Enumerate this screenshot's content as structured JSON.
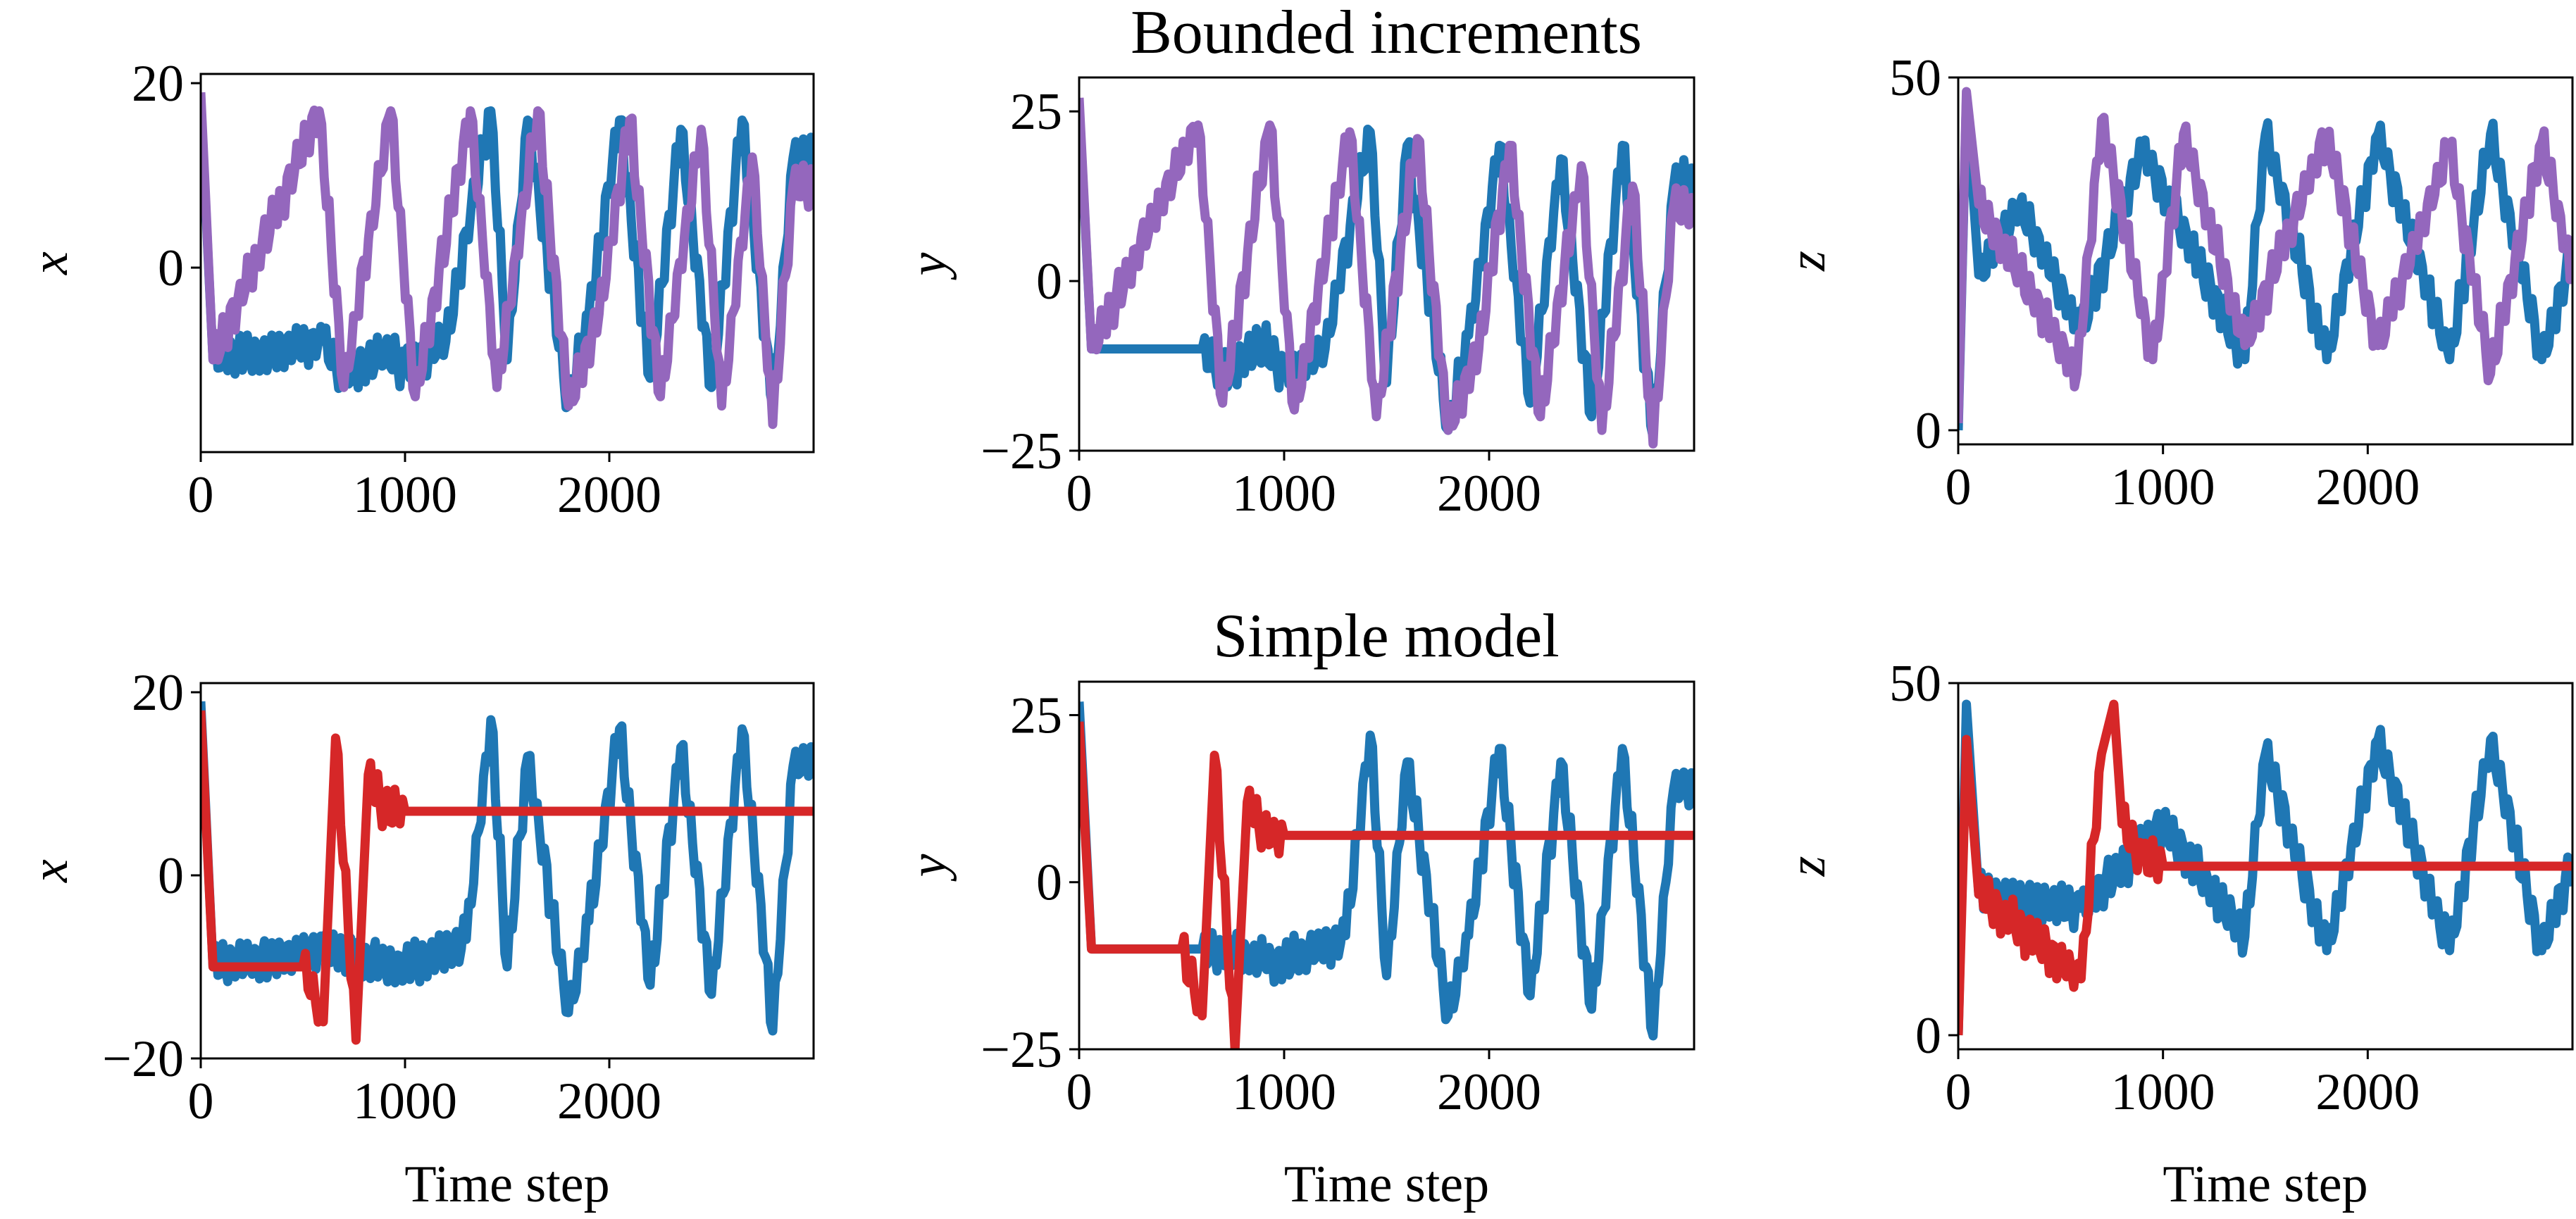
{
  "chart_data": [
    {
      "type": "line",
      "row_title": "Bounded increments",
      "xlabel": "",
      "ylabel": "x",
      "xlim": [
        0,
        3000
      ],
      "ylim": [
        -20,
        21
      ],
      "xticks": [
        0,
        1000,
        2000
      ],
      "yticks": [
        0,
        20
      ],
      "series": [
        {
          "color": "#1f77b4",
          "points": [
            [
              0,
              18
            ],
            [
              60,
              -10
            ],
            [
              600,
              -8
            ],
            [
              700,
              -12
            ],
            [
              900,
              -9
            ],
            [
              1000,
              -11
            ],
            [
              1200,
              -8
            ],
            [
              1420,
              17
            ],
            [
              1500,
              -10
            ],
            [
              1600,
              16
            ],
            [
              1800,
              -15
            ],
            [
              1900,
              -5
            ],
            [
              2050,
              16
            ],
            [
              2200,
              -12
            ],
            [
              2350,
              15
            ],
            [
              2500,
              -13
            ],
            [
              2650,
              16
            ],
            [
              2800,
              -15
            ],
            [
              2900,
              12
            ],
            [
              3000,
              13
            ]
          ]
        },
        {
          "color": "#9467bd",
          "points": [
            [
              0,
              19
            ],
            [
              60,
              -10
            ],
            [
              580,
              17
            ],
            [
              700,
              -13
            ],
            [
              930,
              17
            ],
            [
              1050,
              -14
            ],
            [
              1320,
              17
            ],
            [
              1450,
              -13
            ],
            [
              1650,
              17
            ],
            [
              1800,
              -15
            ],
            [
              1950,
              -5
            ],
            [
              2100,
              16
            ],
            [
              2250,
              -14
            ],
            [
              2450,
              15
            ],
            [
              2550,
              -15
            ],
            [
              2700,
              12
            ],
            [
              2800,
              -17
            ],
            [
              2900,
              9
            ],
            [
              3000,
              9
            ]
          ]
        }
      ]
    },
    {
      "type": "line",
      "row_title": "",
      "xlabel": "",
      "ylabel": "y",
      "xlim": [
        0,
        3000
      ],
      "ylim": [
        -25,
        30
      ],
      "xticks": [
        0,
        1000,
        2000
      ],
      "yticks": [
        -25,
        0,
        25
      ],
      "series": [
        {
          "color": "#1f77b4",
          "points": [
            [
              0,
              26
            ],
            [
              60,
              -10
            ],
            [
              600,
              -10
            ],
            [
              700,
              -14
            ],
            [
              900,
              -9
            ],
            [
              1000,
              -14
            ],
            [
              1200,
              -10
            ],
            [
              1420,
              22
            ],
            [
              1500,
              -15
            ],
            [
              1600,
              20
            ],
            [
              1800,
              -22
            ],
            [
              1900,
              -8
            ],
            [
              2050,
              20
            ],
            [
              2200,
              -18
            ],
            [
              2350,
              18
            ],
            [
              2500,
              -20
            ],
            [
              2650,
              20
            ],
            [
              2800,
              -23
            ],
            [
              2900,
              14
            ],
            [
              3000,
              15
            ]
          ]
        },
        {
          "color": "#9467bd",
          "points": [
            [
              0,
              27
            ],
            [
              60,
              -10
            ],
            [
              580,
              23
            ],
            [
              700,
              -18
            ],
            [
              930,
              23
            ],
            [
              1050,
              -19
            ],
            [
              1320,
              22
            ],
            [
              1450,
              -20
            ],
            [
              1650,
              21
            ],
            [
              1800,
              -22
            ],
            [
              1950,
              -10
            ],
            [
              2100,
              20
            ],
            [
              2250,
              -20
            ],
            [
              2450,
              17
            ],
            [
              2550,
              -22
            ],
            [
              2700,
              14
            ],
            [
              2800,
              -24
            ],
            [
              2900,
              11
            ],
            [
              3000,
              10
            ]
          ]
        }
      ]
    },
    {
      "type": "line",
      "row_title": "",
      "xlabel": "",
      "ylabel": "z",
      "xlim": [
        0,
        3000
      ],
      "ylim": [
        -2,
        50
      ],
      "xticks": [
        0,
        1000,
        2000
      ],
      "yticks": [
        0,
        50
      ],
      "series": [
        {
          "color": "#1f77b4",
          "points": [
            [
              0,
              0
            ],
            [
              40,
              47
            ],
            [
              100,
              22
            ],
            [
              300,
              32
            ],
            [
              600,
              14
            ],
            [
              900,
              40
            ],
            [
              1400,
              10
            ],
            [
              1500,
              42
            ],
            [
              1800,
              10
            ],
            [
              2050,
              42
            ],
            [
              2400,
              10
            ],
            [
              2600,
              42
            ],
            [
              2850,
              10
            ],
            [
              3000,
              25
            ]
          ]
        },
        {
          "color": "#9467bd",
          "points": [
            [
              0,
              1
            ],
            [
              40,
              48
            ],
            [
              100,
              32
            ],
            [
              300,
              22
            ],
            [
              580,
              8
            ],
            [
              700,
              44
            ],
            [
              950,
              10
            ],
            [
              1100,
              42
            ],
            [
              1400,
              12
            ],
            [
              1800,
              42
            ],
            [
              2050,
              12
            ],
            [
              2400,
              40
            ],
            [
              2600,
              8
            ],
            [
              2850,
              41
            ],
            [
              3000,
              22
            ]
          ]
        }
      ]
    },
    {
      "type": "line",
      "row_title": "Simple model",
      "xlabel": "Time step",
      "ylabel": "x",
      "xlim": [
        0,
        3000
      ],
      "ylim": [
        -20,
        21
      ],
      "xticks": [
        0,
        1000,
        2000
      ],
      "yticks": [
        -20,
        0,
        20
      ],
      "series": [
        {
          "color": "#1f77b4",
          "points": [
            [
              0,
              19
            ],
            [
              60,
              -10
            ],
            [
              600,
              -8
            ],
            [
              1000,
              -10
            ],
            [
              1300,
              -7
            ],
            [
              1420,
              17
            ],
            [
              1500,
              -10
            ],
            [
              1600,
              13
            ],
            [
              1800,
              -15
            ],
            [
              1900,
              -5
            ],
            [
              2050,
              16
            ],
            [
              2200,
              -12
            ],
            [
              2350,
              14
            ],
            [
              2500,
              -13
            ],
            [
              2650,
              16
            ],
            [
              2800,
              -17
            ],
            [
              2900,
              12
            ],
            [
              3000,
              13
            ]
          ]
        },
        {
          "color": "#d62728",
          "points": [
            [
              0,
              18
            ],
            [
              60,
              -10
            ],
            [
              500,
              -10
            ],
            [
              600,
              -16
            ],
            [
              660,
              15
            ],
            [
              760,
              -18
            ],
            [
              820,
              11
            ],
            [
              900,
              7
            ],
            [
              1000,
              7
            ],
            [
              3000,
              7
            ]
          ]
        }
      ]
    },
    {
      "type": "line",
      "row_title": "",
      "xlabel": "Time step",
      "ylabel": "y",
      "xlim": [
        0,
        3000
      ],
      "ylim": [
        -25,
        30
      ],
      "xticks": [
        0,
        1000,
        2000
      ],
      "yticks": [
        -25,
        0,
        25
      ],
      "series": [
        {
          "color": "#1f77b4",
          "points": [
            [
              0,
              27
            ],
            [
              60,
              -10
            ],
            [
              600,
              -10
            ],
            [
              1000,
              -12
            ],
            [
              1300,
              -8
            ],
            [
              1420,
              22
            ],
            [
              1500,
              -14
            ],
            [
              1600,
              18
            ],
            [
              1800,
              -20
            ],
            [
              1900,
              -8
            ],
            [
              2050,
              20
            ],
            [
              2200,
              -17
            ],
            [
              2350,
              18
            ],
            [
              2500,
              -19
            ],
            [
              2650,
              20
            ],
            [
              2800,
              -23
            ],
            [
              2900,
              14
            ],
            [
              3000,
              15
            ]
          ]
        },
        {
          "color": "#d62728",
          "points": [
            [
              0,
              24
            ],
            [
              60,
              -10
            ],
            [
              500,
              -10
            ],
            [
              600,
              -20
            ],
            [
              660,
              19
            ],
            [
              760,
              -25
            ],
            [
              820,
              12
            ],
            [
              900,
              7
            ],
            [
              1000,
              7
            ],
            [
              3000,
              7
            ]
          ]
        }
      ]
    },
    {
      "type": "line",
      "row_title": "",
      "xlabel": "Time step",
      "ylabel": "z",
      "xlim": [
        0,
        3000
      ],
      "ylim": [
        -2,
        50
      ],
      "xticks": [
        0,
        1000,
        2000
      ],
      "yticks": [
        0,
        50
      ],
      "series": [
        {
          "color": "#1f77b4",
          "points": [
            [
              0,
              0
            ],
            [
              40,
              47
            ],
            [
              100,
              20
            ],
            [
              600,
              18
            ],
            [
              1000,
              30
            ],
            [
              1400,
              14
            ],
            [
              1500,
              40
            ],
            [
              1800,
              12
            ],
            [
              2050,
              42
            ],
            [
              2400,
              12
            ],
            [
              2600,
              42
            ],
            [
              2850,
              12
            ],
            [
              3000,
              25
            ]
          ]
        },
        {
          "color": "#d62728",
          "points": [
            [
              0,
              0
            ],
            [
              40,
              42
            ],
            [
              100,
              20
            ],
            [
              600,
              8
            ],
            [
              700,
              40
            ],
            [
              760,
              47
            ],
            [
              800,
              30
            ],
            [
              900,
              25
            ],
            [
              1000,
              24
            ],
            [
              3000,
              24
            ]
          ]
        }
      ]
    }
  ]
}
